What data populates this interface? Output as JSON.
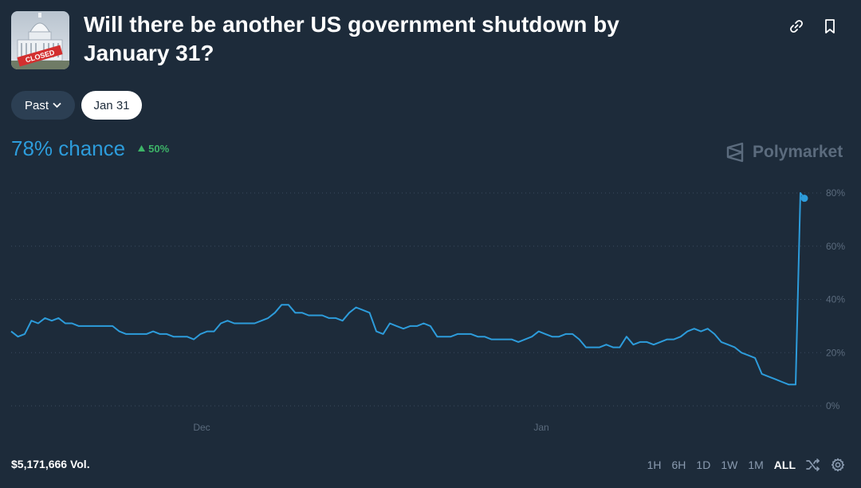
{
  "market": {
    "title": "Will there be another US government shutdown by January 31?",
    "thumbnail_stamp": "CLOSED",
    "thumbnail_icon": "capitol-building-icon"
  },
  "header_actions": [
    {
      "name": "link-icon"
    },
    {
      "name": "bookmark-icon"
    }
  ],
  "filters": {
    "past_label": "Past",
    "date_label": "Jan 31"
  },
  "summary": {
    "chance": "78% chance",
    "change": "50%",
    "brand": "Polymarket"
  },
  "footer": {
    "volume": "$5,171,666 Vol.",
    "ranges": [
      "1H",
      "6H",
      "1D",
      "1W",
      "1M",
      "ALL"
    ],
    "active_range": "ALL"
  },
  "colors": {
    "background": "#1d2b3a",
    "line": "#2d9cdb",
    "positive": "#3db468",
    "muted": "#5b6b7d",
    "grid": "#3a4b5e"
  },
  "chart_data": {
    "type": "line",
    "y_ticks": [
      "0%",
      "20%",
      "40%",
      "60%",
      "80%"
    ],
    "x_tick_labels": [
      "Dec",
      "Jan"
    ],
    "ylim": [
      0,
      80
    ],
    "grid": true,
    "series": [
      {
        "values": [
          28,
          26,
          27,
          32,
          31,
          33,
          32,
          33,
          31,
          31,
          30,
          30,
          30,
          30,
          30,
          30,
          28,
          27,
          27,
          27,
          27,
          28,
          27,
          27,
          26,
          26,
          26,
          25,
          27,
          28,
          28,
          31,
          32,
          31,
          31,
          31,
          31,
          32,
          33,
          35,
          38,
          38,
          35,
          35,
          34,
          34,
          34,
          33,
          33,
          32,
          35,
          37,
          36,
          35,
          28,
          27,
          31,
          30,
          29,
          30,
          30,
          31,
          30,
          26,
          26,
          26,
          27,
          27,
          27,
          26,
          26,
          25,
          25,
          25,
          25,
          24,
          25,
          26,
          28,
          27,
          26,
          26,
          27,
          27,
          25,
          22,
          22,
          22,
          23,
          22,
          22,
          26,
          23,
          24,
          24,
          23,
          24,
          25,
          25,
          26,
          28,
          29,
          28,
          29,
          27,
          24,
          23,
          22,
          20,
          19,
          18,
          12,
          11,
          10,
          9,
          8,
          8,
          80,
          78
        ]
      }
    ]
  }
}
